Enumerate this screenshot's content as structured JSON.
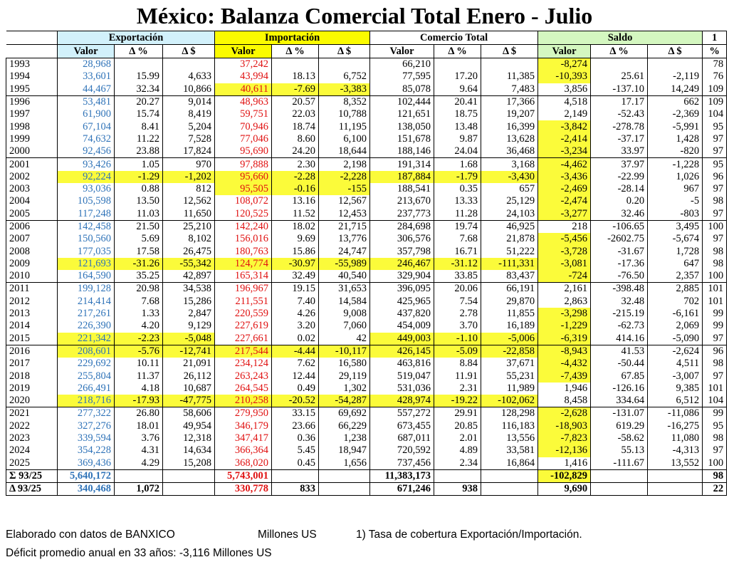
{
  "title": "México: Balanza Comercial Total Enero - Julio",
  "groups": {
    "exportacion": "Exportación",
    "importacion": "Importación",
    "comercio": "Comercio Total",
    "saldo": "Saldo",
    "ratio_note_ref": "1"
  },
  "columns": [
    "Valor",
    "Δ %",
    "Δ $",
    "Valor",
    "Δ %",
    "Δ $",
    "Valor",
    "Δ %",
    "Δ $",
    "Valor",
    "Δ %",
    "Δ $",
    "%"
  ],
  "rows": [
    {
      "year": "1993",
      "cells": [
        "28,968",
        "",
        "",
        "37,242",
        "",
        "",
        "66,210",
        "",
        "",
        "-8,274",
        "",
        "",
        "78"
      ],
      "hl": [
        9
      ]
    },
    {
      "year": "1994",
      "cells": [
        "33,601",
        "15.99",
        "4,633",
        "43,994",
        "18.13",
        "6,752",
        "77,595",
        "17.20",
        "11,385",
        "-10,393",
        "25.61",
        "-2,119",
        "76"
      ],
      "hl": [
        9
      ]
    },
    {
      "year": "1995",
      "cells": [
        "44,467",
        "32.34",
        "10,866",
        "40,611",
        "-7.69",
        "-3,383",
        "85,078",
        "9.64",
        "7,483",
        "3,856",
        "-137.10",
        "14,249",
        "109"
      ],
      "hl": [
        3,
        4,
        5
      ]
    },
    {
      "year": "1996",
      "cells": [
        "53,481",
        "20.27",
        "9,014",
        "48,963",
        "20.57",
        "8,352",
        "102,444",
        "20.41",
        "17,366",
        "4,518",
        "17.17",
        "662",
        "109"
      ],
      "hl": []
    },
    {
      "year": "1997",
      "cells": [
        "61,900",
        "15.74",
        "8,419",
        "59,751",
        "22.03",
        "10,788",
        "121,651",
        "18.75",
        "19,207",
        "2,149",
        "-52.43",
        "-2,369",
        "104"
      ],
      "hl": []
    },
    {
      "year": "1998",
      "cells": [
        "67,104",
        "8.41",
        "5,204",
        "70,946",
        "18.74",
        "11,195",
        "138,050",
        "13.48",
        "16,399",
        "-3,842",
        "-278.78",
        "-5,991",
        "95"
      ],
      "hl": [
        9
      ]
    },
    {
      "year": "1999",
      "cells": [
        "74,632",
        "11.22",
        "7,528",
        "77,046",
        "8.60",
        "6,100",
        "151,678",
        "9.87",
        "13,628",
        "-2,414",
        "-37.17",
        "1,428",
        "97"
      ],
      "hl": [
        9
      ]
    },
    {
      "year": "2000",
      "cells": [
        "92,456",
        "23.88",
        "17,824",
        "95,690",
        "24.20",
        "18,644",
        "188,146",
        "24.04",
        "36,468",
        "-3,234",
        "33.97",
        "-820",
        "97"
      ],
      "hl": [
        9
      ]
    },
    {
      "year": "2001",
      "cells": [
        "93,426",
        "1.05",
        "970",
        "97,888",
        "2.30",
        "2,198",
        "191,314",
        "1.68",
        "3,168",
        "-4,462",
        "37.97",
        "-1,228",
        "95"
      ],
      "hl": [
        9
      ]
    },
    {
      "year": "2002",
      "cells": [
        "92,224",
        "-1.29",
        "-1,202",
        "95,660",
        "-2.28",
        "-2,228",
        "187,884",
        "-1.79",
        "-3,430",
        "-3,436",
        "-22.99",
        "1,026",
        "96"
      ],
      "hl": [
        0,
        1,
        2,
        3,
        4,
        5,
        6,
        7,
        8,
        9
      ]
    },
    {
      "year": "2003",
      "cells": [
        "93,036",
        "0.88",
        "812",
        "95,505",
        "-0.16",
        "-155",
        "188,541",
        "0.35",
        "657",
        "-2,469",
        "-28.14",
        "967",
        "97"
      ],
      "hl": [
        3,
        4,
        5,
        9
      ]
    },
    {
      "year": "2004",
      "cells": [
        "105,598",
        "13.50",
        "12,562",
        "108,072",
        "13.16",
        "12,567",
        "213,670",
        "13.33",
        "25,129",
        "-2,474",
        "0.20",
        "-5",
        "98"
      ],
      "hl": [
        9
      ]
    },
    {
      "year": "2005",
      "cells": [
        "117,248",
        "11.03",
        "11,650",
        "120,525",
        "11.52",
        "12,453",
        "237,773",
        "11.28",
        "24,103",
        "-3,277",
        "32.46",
        "-803",
        "97"
      ],
      "hl": [
        9
      ]
    },
    {
      "year": "2006",
      "cells": [
        "142,458",
        "21.50",
        "25,210",
        "142,240",
        "18.02",
        "21,715",
        "284,698",
        "19.74",
        "46,925",
        "218",
        "-106.65",
        "3,495",
        "100"
      ],
      "hl": []
    },
    {
      "year": "2007",
      "cells": [
        "150,560",
        "5.69",
        "8,102",
        "156,016",
        "9.69",
        "13,776",
        "306,576",
        "7.68",
        "21,878",
        "-5,456",
        "-2602.75",
        "-5,674",
        "97"
      ],
      "hl": [
        9
      ]
    },
    {
      "year": "2008",
      "cells": [
        "177,035",
        "17.58",
        "26,475",
        "180,763",
        "15.86",
        "24,747",
        "357,798",
        "16.71",
        "51,222",
        "-3,728",
        "-31.67",
        "1,728",
        "98"
      ],
      "hl": [
        9
      ]
    },
    {
      "year": "2009",
      "cells": [
        "121,693",
        "-31.26",
        "-55,342",
        "124,774",
        "-30.97",
        "-55,989",
        "246,467",
        "-31.12",
        "-111,331",
        "-3,081",
        "-17.36",
        "647",
        "98"
      ],
      "hl": [
        0,
        1,
        2,
        3,
        4,
        5,
        6,
        7,
        8,
        9
      ]
    },
    {
      "year": "2010",
      "cells": [
        "164,590",
        "35.25",
        "42,897",
        "165,314",
        "32.49",
        "40,540",
        "329,904",
        "33.85",
        "83,437",
        "-724",
        "-76.50",
        "2,357",
        "100"
      ],
      "hl": [
        9
      ]
    },
    {
      "year": "2011",
      "cells": [
        "199,128",
        "20.98",
        "34,538",
        "196,967",
        "19.15",
        "31,653",
        "396,095",
        "20.06",
        "66,191",
        "2,161",
        "-398.48",
        "2,885",
        "101"
      ],
      "hl": []
    },
    {
      "year": "2012",
      "cells": [
        "214,414",
        "7.68",
        "15,286",
        "211,551",
        "7.40",
        "14,584",
        "425,965",
        "7.54",
        "29,870",
        "2,863",
        "32.48",
        "702",
        "101"
      ],
      "hl": []
    },
    {
      "year": "2013",
      "cells": [
        "217,261",
        "1.33",
        "2,847",
        "220,559",
        "4.26",
        "9,008",
        "437,820",
        "2.78",
        "11,855",
        "-3,298",
        "-215.19",
        "-6,161",
        "99"
      ],
      "hl": [
        9
      ]
    },
    {
      "year": "2014",
      "cells": [
        "226,390",
        "4.20",
        "9,129",
        "227,619",
        "3.20",
        "7,060",
        "454,009",
        "3.70",
        "16,189",
        "-1,229",
        "-62.73",
        "2,069",
        "99"
      ],
      "hl": [
        9
      ]
    },
    {
      "year": "2015",
      "cells": [
        "221,342",
        "-2.23",
        "-5,048",
        "227,661",
        "0.02",
        "42",
        "449,003",
        "-1.10",
        "-5,006",
        "-6,319",
        "414.16",
        "-5,090",
        "97"
      ],
      "hl": [
        0,
        1,
        2,
        6,
        7,
        8,
        9
      ]
    },
    {
      "year": "2016",
      "cells": [
        "208,601",
        "-5.76",
        "-12,741",
        "217,544",
        "-4.44",
        "-10,117",
        "426,145",
        "-5.09",
        "-22,858",
        "-8,943",
        "41.53",
        "-2,624",
        "96"
      ],
      "hl": [
        0,
        1,
        2,
        3,
        4,
        5,
        6,
        7,
        8,
        9
      ]
    },
    {
      "year": "2017",
      "cells": [
        "229,692",
        "10.11",
        "21,091",
        "234,124",
        "7.62",
        "16,580",
        "463,816",
        "8.84",
        "37,671",
        "-4,432",
        "-50.44",
        "4,511",
        "98"
      ],
      "hl": [
        9
      ]
    },
    {
      "year": "2018",
      "cells": [
        "255,804",
        "11.37",
        "26,112",
        "263,243",
        "12.44",
        "29,119",
        "519,047",
        "11.91",
        "55,231",
        "-7,439",
        "67.85",
        "-3,007",
        "97"
      ],
      "hl": [
        9
      ]
    },
    {
      "year": "2019",
      "cells": [
        "266,491",
        "4.18",
        "10,687",
        "264,545",
        "0.49",
        "1,302",
        "531,036",
        "2.31",
        "11,989",
        "1,946",
        "-126.16",
        "9,385",
        "101"
      ],
      "hl": []
    },
    {
      "year": "2020",
      "cells": [
        "218,716",
        "-17.93",
        "-47,775",
        "210,258",
        "-20.52",
        "-54,287",
        "428,974",
        "-19.22",
        "-102,062",
        "8,458",
        "334.64",
        "6,512",
        "104"
      ],
      "hl": [
        0,
        1,
        2,
        3,
        4,
        5,
        6,
        7,
        8
      ]
    },
    {
      "year": "2021",
      "cells": [
        "277,322",
        "26.80",
        "58,606",
        "279,950",
        "33.15",
        "69,692",
        "557,272",
        "29.91",
        "128,298",
        "-2,628",
        "-131.07",
        "-11,086",
        "99"
      ],
      "hl": [
        9
      ]
    },
    {
      "year": "2022",
      "cells": [
        "327,276",
        "18.01",
        "49,954",
        "346,179",
        "23.66",
        "66,229",
        "673,455",
        "20.85",
        "116,183",
        "-18,903",
        "619.29",
        "-16,275",
        "95"
      ],
      "hl": [
        9
      ]
    },
    {
      "year": "2023",
      "cells": [
        "339,594",
        "3.76",
        "12,318",
        "347,417",
        "0.36",
        "1,238",
        "687,011",
        "2.01",
        "13,556",
        "-7,823",
        "-58.62",
        "11,080",
        "98"
      ],
      "hl": [
        9
      ]
    },
    {
      "year": "2024",
      "cells": [
        "354,228",
        "4.31",
        "14,634",
        "366,364",
        "5.45",
        "18,947",
        "720,592",
        "4.89",
        "33,581",
        "-12,136",
        "55.13",
        "-4,313",
        "97"
      ],
      "hl": [
        9
      ]
    },
    {
      "year": "2025",
      "cells": [
        "369,436",
        "4.29",
        "15,208",
        "368,020",
        "0.45",
        "1,656",
        "737,456",
        "2.34",
        "16,864",
        "1,416",
        "-111.67",
        "13,552",
        "100"
      ],
      "hl": []
    }
  ],
  "sum_row": {
    "label": "Σ 93/25",
    "cells": [
      "5,640,172",
      "",
      "",
      "5,743,001",
      "",
      "",
      "11,383,173",
      "",
      "",
      "-102,829",
      "",
      "",
      "98"
    ],
    "hl": [
      9
    ]
  },
  "delta_row": {
    "label": "Δ 93/25",
    "cells": [
      "340,468",
      "1,072",
      "",
      "330,778",
      "833",
      "",
      "671,246",
      "938",
      "",
      "9,690",
      "",
      "",
      "22"
    ],
    "hl": []
  },
  "notes": {
    "source": "Elaborado con datos de BANXICO",
    "units": "Millones US",
    "footnote": "1) Tasa de cobertura Exportación/Importación.",
    "average": "Déficit promedio anual en 33 años: -3,116 Millones US"
  },
  "colors": {
    "export_header": "#d2f1fb",
    "import_header": "#fbfb00",
    "saldo_header": "#d4f7c0",
    "highlight": "#fbfb3a",
    "export_text": "#2f73b8",
    "import_text": "#e01010"
  }
}
